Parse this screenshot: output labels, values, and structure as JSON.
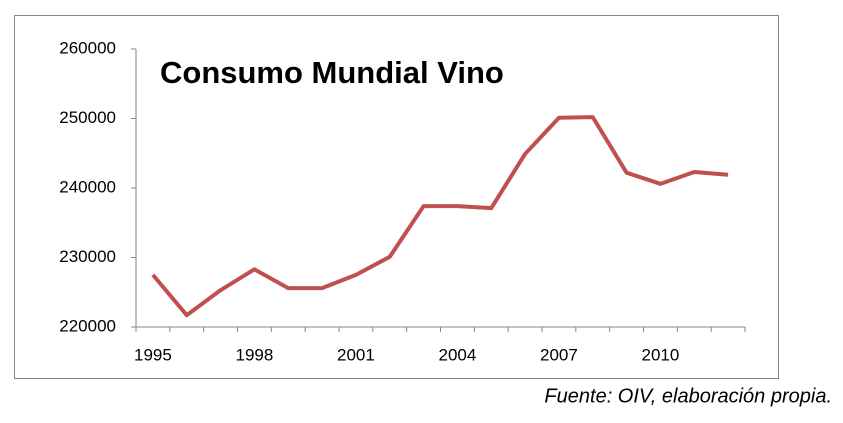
{
  "chart_data": {
    "type": "line",
    "title": "Consumo Mundial Vino",
    "categories": [
      "1995",
      null,
      null,
      "1998",
      null,
      null,
      "2001",
      null,
      null,
      "2004",
      null,
      null,
      "2007",
      null,
      null,
      "2010",
      null,
      null
    ],
    "series": [
      {
        "color": "#c0504d",
        "values": [
          227500,
          221700,
          225300,
          228300,
          225600,
          225600,
          227500,
          230100,
          237400,
          237400,
          237100,
          244900,
          250100,
          250200,
          242200,
          240600,
          242300,
          241900
        ]
      }
    ],
    "ylim": [
      220000,
      260000
    ],
    "yticks": [
      220000,
      230000,
      240000,
      250000,
      260000
    ],
    "grid": false,
    "source": "Fuente: OIV, elaboración propia."
  }
}
